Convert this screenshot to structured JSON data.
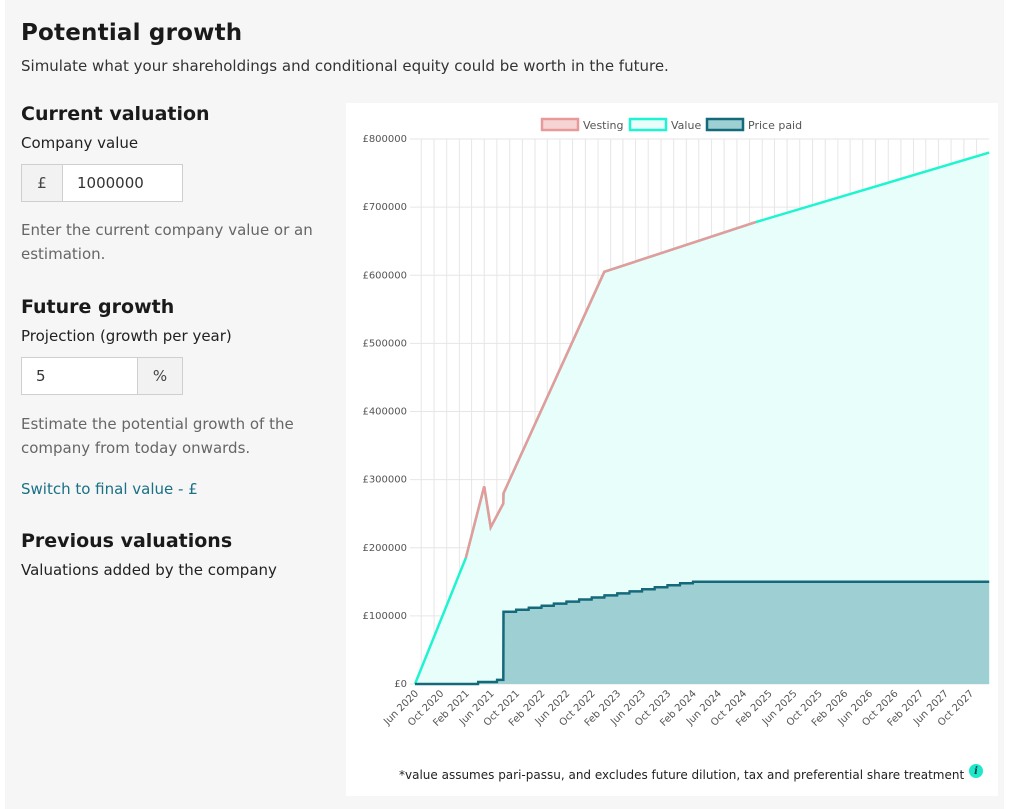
{
  "header": {
    "title": "Potential growth",
    "subtitle": "Simulate what your shareholdings and conditional equity could be worth in the future."
  },
  "current_valuation": {
    "heading": "Current valuation",
    "label": "Company value",
    "currency_symbol": "£",
    "value": "1000000",
    "help": "Enter the current company value or an estimation."
  },
  "future_growth": {
    "heading": "Future growth",
    "label": "Projection (growth per year)",
    "value": "5",
    "unit": "%",
    "help": "Estimate the potential growth of the company from today onwards.",
    "switch_link": "Switch to final value - £"
  },
  "previous_valuations": {
    "heading": "Previous valuations",
    "label": "Valuations added by the company"
  },
  "footnote": "*value assumes pari-passu, and excludes future dilution, tax and preferential share treatment",
  "info_icon_glyph": "i",
  "colors": {
    "vesting": "#e89a9a",
    "value": "#1ef5d0",
    "price_paid": "#14697a",
    "link": "#1a7085"
  },
  "chart_data": {
    "type": "line",
    "legend": [
      "Vesting",
      "Value",
      "Price paid"
    ],
    "legend_position": "top-center",
    "grid": true,
    "x_tick_labels": [
      "Jun 2020",
      "Oct 2020",
      "Feb 2021",
      "Jun 2021",
      "Oct 2021",
      "Feb 2022",
      "Jun 2022",
      "Oct 2022",
      "Feb 2023",
      "Jun 2023",
      "Oct 2023",
      "Feb 2024",
      "Jun 2024",
      "Oct 2024",
      "Feb 2025",
      "Jun 2025",
      "Oct 2025",
      "Feb 2026",
      "Jun 2026",
      "Oct 2026",
      "Feb 2027",
      "Jun 2027",
      "Oct 2027"
    ],
    "y_tick_labels": [
      "£0",
      "£100000",
      "£200000",
      "£300000",
      "£400000",
      "£500000",
      "£600000",
      "£700000",
      "£800000"
    ],
    "ylim": [
      0,
      800000
    ],
    "series": [
      {
        "name": "Value",
        "points": [
          [
            "2020-06-01",
            0
          ],
          [
            "2021-02-01",
            185000
          ],
          [
            "2021-05-01",
            290000
          ],
          [
            "2021-06-01",
            230000
          ],
          [
            "2021-08-01",
            265000
          ],
          [
            "2021-08-02",
            280000
          ],
          [
            "2022-12-01",
            605000
          ],
          [
            "2024-12-01",
            678000
          ],
          [
            "2028-01-01",
            780000
          ]
        ]
      },
      {
        "name": "Vesting",
        "points": [
          [
            "2021-02-01",
            185000
          ],
          [
            "2021-05-01",
            290000
          ],
          [
            "2021-06-01",
            230000
          ],
          [
            "2021-08-01",
            265000
          ],
          [
            "2021-08-02",
            280000
          ],
          [
            "2022-12-01",
            605000
          ],
          [
            "2024-12-01",
            678000
          ]
        ]
      },
      {
        "name": "Price paid",
        "points": [
          [
            "2020-06-01",
            0
          ],
          [
            "2021-04-01",
            0
          ],
          [
            "2021-04-02",
            3000
          ],
          [
            "2021-07-01",
            3000
          ],
          [
            "2021-07-02",
            6000
          ],
          [
            "2021-08-01",
            6000
          ],
          [
            "2021-08-02",
            106000
          ],
          [
            "2021-10-01",
            106000
          ],
          [
            "2021-10-02",
            109000
          ],
          [
            "2021-12-01",
            109000
          ],
          [
            "2021-12-02",
            112000
          ],
          [
            "2022-02-01",
            112000
          ],
          [
            "2022-02-02",
            115000
          ],
          [
            "2022-04-01",
            115000
          ],
          [
            "2022-04-02",
            118000
          ],
          [
            "2022-06-01",
            118000
          ],
          [
            "2022-06-02",
            121000
          ],
          [
            "2022-08-01",
            121000
          ],
          [
            "2022-08-02",
            124000
          ],
          [
            "2022-10-01",
            124000
          ],
          [
            "2022-10-02",
            127000
          ],
          [
            "2022-12-01",
            127000
          ],
          [
            "2022-12-02",
            130000
          ],
          [
            "2023-02-01",
            130000
          ],
          [
            "2023-02-02",
            133000
          ],
          [
            "2023-04-01",
            133000
          ],
          [
            "2023-04-02",
            136000
          ],
          [
            "2023-06-01",
            136000
          ],
          [
            "2023-06-02",
            139000
          ],
          [
            "2023-08-01",
            139000
          ],
          [
            "2023-08-02",
            142000
          ],
          [
            "2023-10-01",
            142000
          ],
          [
            "2023-10-02",
            145000
          ],
          [
            "2023-12-01",
            145000
          ],
          [
            "2023-12-02",
            148000
          ],
          [
            "2024-02-01",
            148000
          ],
          [
            "2024-02-02",
            150000
          ],
          [
            "2028-01-01",
            150000
          ]
        ]
      }
    ]
  }
}
